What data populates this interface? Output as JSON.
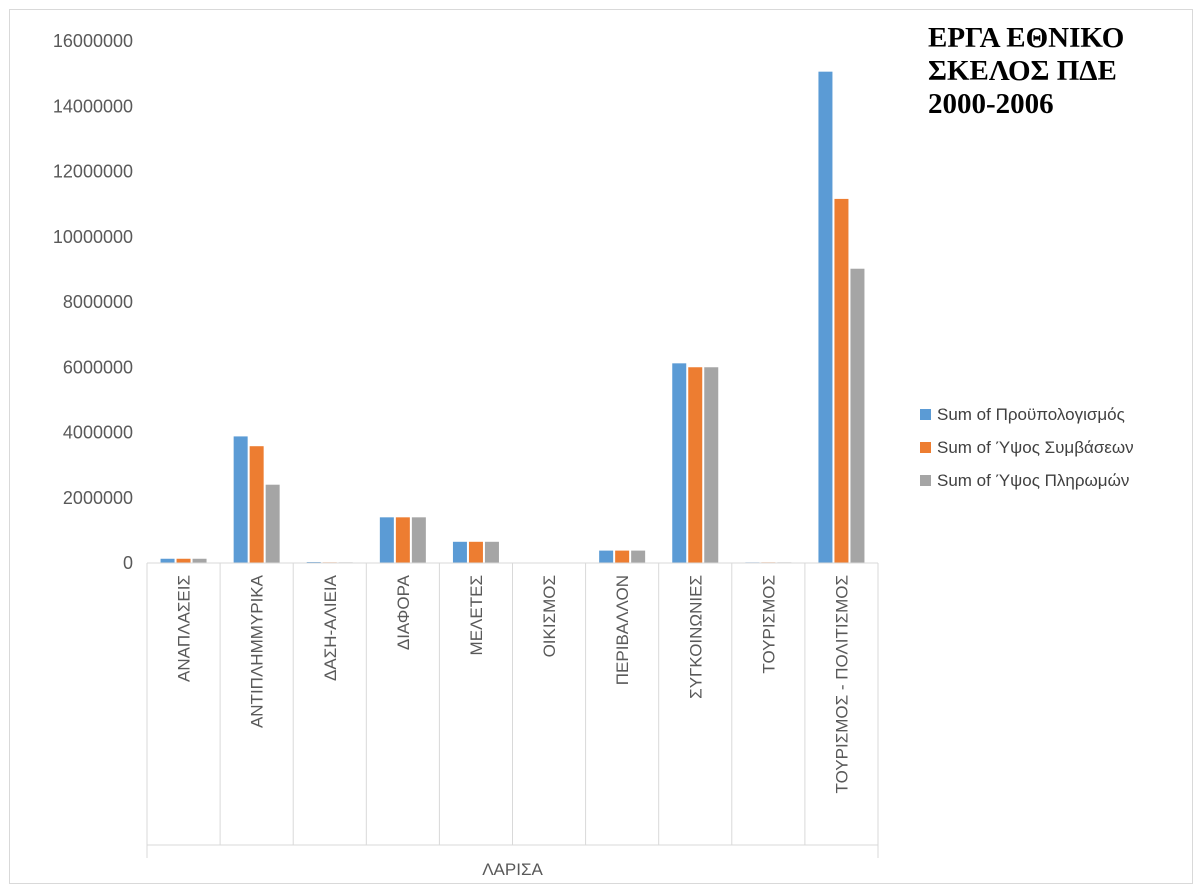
{
  "chart_data": {
    "type": "bar",
    "title": "ΕΡΓΑ ΕΘΝΙΚΟ ΣΚΕΛΟΣ ΠΔΕ 2000-2006",
    "group_label": "ΛΑΡΙΣΑ",
    "categories": [
      "ΑΝΑΠΛΑΣΕΙΣ",
      "ΑΝΤΙΠΛΗΜΜΥΡΙΚΑ",
      "ΔΑΣΗ-ΑΛΙΕΙΑ",
      "ΔΙΑΦΟΡΑ",
      "ΜΕΛΕΤΕΣ",
      "ΟΙΚΙΣΜΟΣ",
      "ΠΕΡΙΒΑΛΛΟΝ",
      "ΣΥΓΚΟΙΝΩΝΙΕΣ",
      "ΤΟΥΡΙΣΜΟΣ",
      "ΤΟΥΡΙΣΜΟΣ - ΠΟΛΙΤΙΣΜΟΣ"
    ],
    "series": [
      {
        "name": "Sum of Προϋπολογισμός",
        "color": "#5b9bd5",
        "values": [
          130000,
          3880000,
          30000,
          1400000,
          650000,
          0,
          380000,
          6120000,
          20000,
          15060000
        ]
      },
      {
        "name": "Sum of Ύψος Συμβάσεων",
        "color": "#ed7d31",
        "values": [
          130000,
          3580000,
          20000,
          1400000,
          650000,
          0,
          380000,
          6000000,
          20000,
          11160000
        ]
      },
      {
        "name": "Sum of Ύψος Πληρωμών",
        "color": "#a5a5a5",
        "values": [
          130000,
          2400000,
          20000,
          1400000,
          650000,
          0,
          380000,
          6000000,
          20000,
          9020000
        ]
      }
    ],
    "y_ticks": [
      "0",
      "2000000",
      "4000000",
      "6000000",
      "8000000",
      "10000000",
      "12000000",
      "14000000",
      "16000000"
    ],
    "ylim": [
      0,
      16000000
    ],
    "legend_position": "right",
    "grid": false
  }
}
